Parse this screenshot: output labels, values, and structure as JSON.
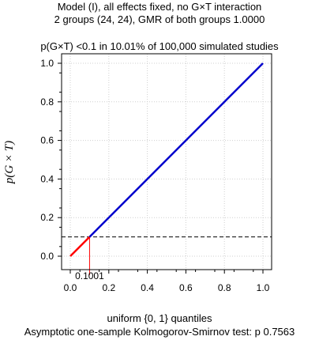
{
  "header": {
    "title_line1": "Model (I), all effects fixed, no G×T interaction",
    "title_line2": "2 groups (24, 24), GMR of both groups 1.0000"
  },
  "subtitle": "p(G×T) <0.1 in 10.01% of 100,000 simulated studies",
  "footer": {
    "xlabel": "uniform {0, 1} quantiles",
    "test_line": "Asymptotic one-sample Kolmogorov-Smirnov test: p 0.7563"
  },
  "chart_data": {
    "type": "line",
    "ylabel": "p(G × T)",
    "xlabel": "uniform {0, 1} quantiles",
    "xlim": [
      0,
      1
    ],
    "ylim": [
      0,
      1
    ],
    "x_ticks": [
      0.0,
      0.2,
      0.4,
      0.6,
      0.8,
      1.0
    ],
    "x_tick_labels": [
      "0.0",
      "0.2",
      "0.4",
      "0.6",
      "0.8",
      "1.0"
    ],
    "y_ticks": [
      0.0,
      0.2,
      0.4,
      0.6,
      0.8,
      1.0
    ],
    "y_tick_labels": [
      "0.0",
      "0.2",
      "0.4",
      "0.6",
      "0.8",
      "1.0"
    ],
    "grid": true,
    "series": [
      {
        "color": "#ff0000",
        "x": [
          0,
          0.1001
        ],
        "y": [
          0,
          0.1
        ]
      },
      {
        "color": "#0000cc",
        "x": [
          0.1001,
          1
        ],
        "y": [
          0.1,
          1
        ]
      }
    ],
    "threshold": {
      "y": 0.1,
      "style": "dashed",
      "color": "#000000"
    },
    "crossing": {
      "x": 0.1001,
      "label": "0.1001",
      "color": "#ff0000"
    }
  }
}
